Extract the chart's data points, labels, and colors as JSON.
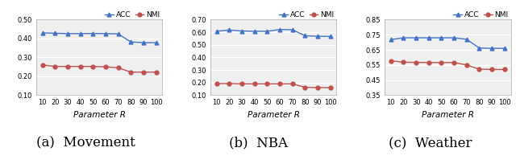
{
  "x": [
    10,
    20,
    30,
    40,
    50,
    60,
    70,
    80,
    90,
    100
  ],
  "movement": {
    "acc": [
      0.43,
      0.428,
      0.426,
      0.426,
      0.427,
      0.426,
      0.425,
      0.382,
      0.378,
      0.378
    ],
    "nmi": [
      0.26,
      0.252,
      0.252,
      0.252,
      0.252,
      0.25,
      0.245,
      0.222,
      0.222,
      0.222
    ],
    "ylim": [
      0.1,
      0.5
    ],
    "yticks": [
      0.1,
      0.2,
      0.3,
      0.4,
      0.5
    ],
    "caption": "(a)  Movement"
  },
  "nba": {
    "acc": [
      0.608,
      0.618,
      0.61,
      0.608,
      0.608,
      0.622,
      0.62,
      0.572,
      0.568,
      0.567
    ],
    "nmi": [
      0.192,
      0.192,
      0.19,
      0.19,
      0.19,
      0.19,
      0.19,
      0.162,
      0.16,
      0.16
    ],
    "ylim": [
      0.1,
      0.7
    ],
    "yticks": [
      0.1,
      0.2,
      0.3,
      0.4,
      0.5,
      0.6,
      0.7
    ],
    "caption": "(b)  NBA"
  },
  "weather": {
    "acc": [
      0.718,
      0.73,
      0.73,
      0.73,
      0.73,
      0.73,
      0.72,
      0.662,
      0.66,
      0.66
    ],
    "nmi": [
      0.578,
      0.568,
      0.567,
      0.566,
      0.566,
      0.566,
      0.55,
      0.522,
      0.52,
      0.52
    ],
    "ylim": [
      0.35,
      0.85
    ],
    "yticks": [
      0.35,
      0.45,
      0.55,
      0.65,
      0.75,
      0.85
    ],
    "caption": "(c)  Weather"
  },
  "acc_color": "#4472c4",
  "nmi_color": "#c0504d",
  "acc_label": "ACC",
  "nmi_label": "NMI",
  "xlabel": "Parameter R",
  "bg_color": "#efefef",
  "grid_color": "#ffffff",
  "legend_fontsize": 6.5,
  "tick_fontsize": 6.0,
  "label_fontsize": 7.5,
  "caption_fontsize": 12,
  "title_fontsize": 8
}
